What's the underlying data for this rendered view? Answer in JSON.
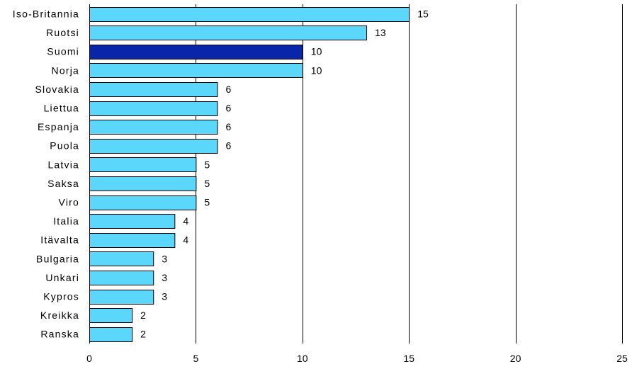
{
  "chart_data": {
    "type": "bar",
    "orientation": "horizontal",
    "categories": [
      "Iso-Britannia",
      "Ruotsi",
      "Suomi",
      "Norja",
      "Slovakia",
      "Liettua",
      "Espanja",
      "Puola",
      "Latvia",
      "Saksa",
      "Viro",
      "Italia",
      "Itävalta",
      "Bulgaria",
      "Unkari",
      "Kypros",
      "Kreikka",
      "Ranska"
    ],
    "values": [
      15,
      13,
      10,
      10,
      6,
      6,
      6,
      6,
      5,
      5,
      5,
      4,
      4,
      3,
      3,
      3,
      2,
      2
    ],
    "data_labels": [
      "15",
      "13",
      "10",
      "10",
      "6",
      "6",
      "6",
      "6",
      "5",
      "5",
      "5",
      "4",
      "4",
      "3",
      "3",
      "3",
      "2",
      "2"
    ],
    "highlight_category": "Suomi",
    "xlim": [
      0,
      25
    ],
    "x_ticks": [
      0,
      5,
      10,
      15,
      20,
      25
    ],
    "x_tick_labels": [
      "0",
      "5",
      "10",
      "15",
      "20",
      "25"
    ],
    "grid": "vertical",
    "legend": "none",
    "colors": {
      "bar": "#5ad7fb",
      "highlight": "#0a26a8",
      "outline": "#000000",
      "grid": "#000000"
    }
  }
}
